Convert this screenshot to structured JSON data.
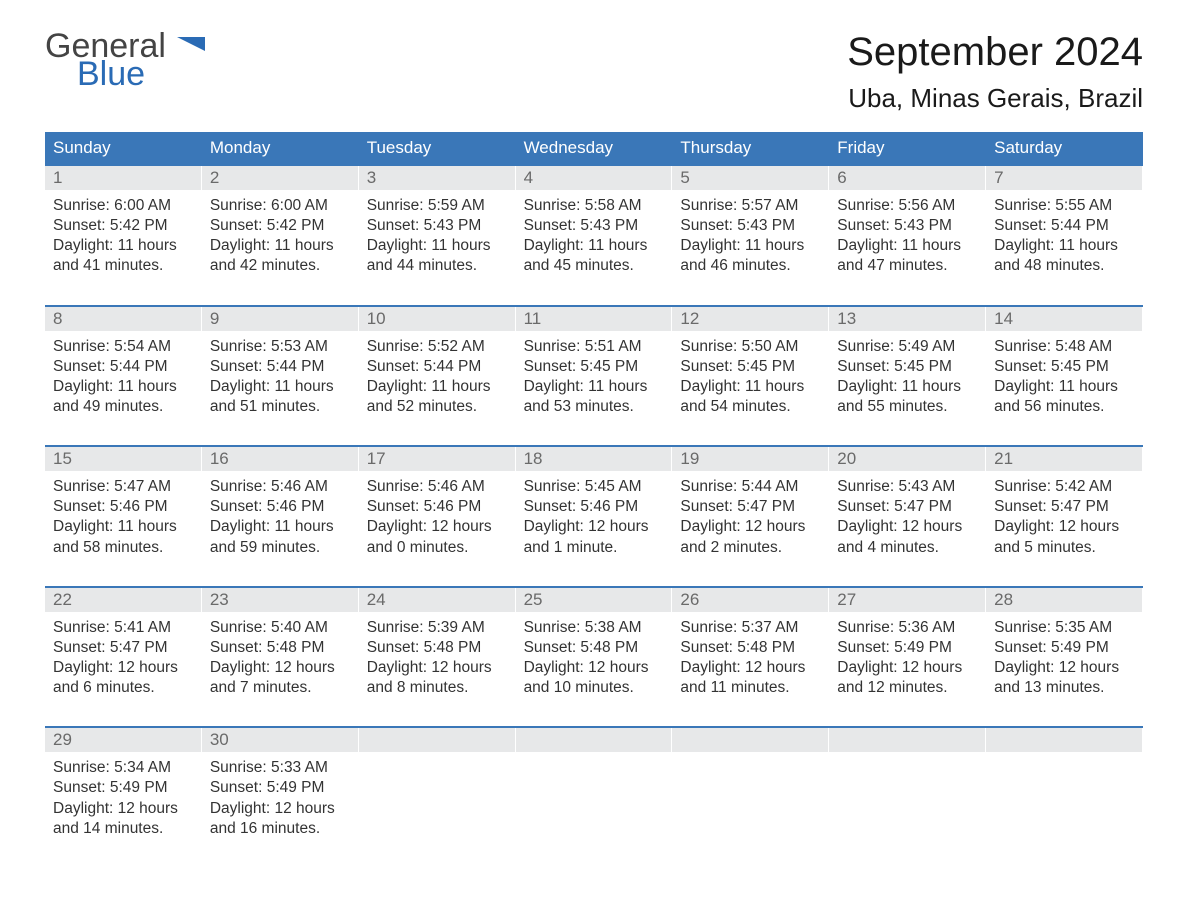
{
  "logo": {
    "line1": "General",
    "line2": "Blue",
    "color_general": "#444444",
    "color_blue": "#2a6bb5",
    "flag_color": "#2a6bb5"
  },
  "header": {
    "month": "September 2024",
    "location": "Uba, Minas Gerais, Brazil"
  },
  "styling": {
    "header_bg": "#3a77b8",
    "header_text": "#ffffff",
    "daynum_bg": "#e7e8e9",
    "daynum_text": "#6a6a6a",
    "body_text": "#333333",
    "row_border": "#3a77b8",
    "page_bg": "#ffffff",
    "font_family": "Arial",
    "title_fontsize": 40,
    "location_fontsize": 26,
    "weekday_fontsize": 17,
    "content_fontsize": 15.5
  },
  "weekdays": [
    "Sunday",
    "Monday",
    "Tuesday",
    "Wednesday",
    "Thursday",
    "Friday",
    "Saturday"
  ],
  "weeks": [
    [
      {
        "num": "1",
        "sunrise": "Sunrise: 6:00 AM",
        "sunset": "Sunset: 5:42 PM",
        "daylight1": "Daylight: 11 hours",
        "daylight2": "and 41 minutes."
      },
      {
        "num": "2",
        "sunrise": "Sunrise: 6:00 AM",
        "sunset": "Sunset: 5:42 PM",
        "daylight1": "Daylight: 11 hours",
        "daylight2": "and 42 minutes."
      },
      {
        "num": "3",
        "sunrise": "Sunrise: 5:59 AM",
        "sunset": "Sunset: 5:43 PM",
        "daylight1": "Daylight: 11 hours",
        "daylight2": "and 44 minutes."
      },
      {
        "num": "4",
        "sunrise": "Sunrise: 5:58 AM",
        "sunset": "Sunset: 5:43 PM",
        "daylight1": "Daylight: 11 hours",
        "daylight2": "and 45 minutes."
      },
      {
        "num": "5",
        "sunrise": "Sunrise: 5:57 AM",
        "sunset": "Sunset: 5:43 PM",
        "daylight1": "Daylight: 11 hours",
        "daylight2": "and 46 minutes."
      },
      {
        "num": "6",
        "sunrise": "Sunrise: 5:56 AM",
        "sunset": "Sunset: 5:43 PM",
        "daylight1": "Daylight: 11 hours",
        "daylight2": "and 47 minutes."
      },
      {
        "num": "7",
        "sunrise": "Sunrise: 5:55 AM",
        "sunset": "Sunset: 5:44 PM",
        "daylight1": "Daylight: 11 hours",
        "daylight2": "and 48 minutes."
      }
    ],
    [
      {
        "num": "8",
        "sunrise": "Sunrise: 5:54 AM",
        "sunset": "Sunset: 5:44 PM",
        "daylight1": "Daylight: 11 hours",
        "daylight2": "and 49 minutes."
      },
      {
        "num": "9",
        "sunrise": "Sunrise: 5:53 AM",
        "sunset": "Sunset: 5:44 PM",
        "daylight1": "Daylight: 11 hours",
        "daylight2": "and 51 minutes."
      },
      {
        "num": "10",
        "sunrise": "Sunrise: 5:52 AM",
        "sunset": "Sunset: 5:44 PM",
        "daylight1": "Daylight: 11 hours",
        "daylight2": "and 52 minutes."
      },
      {
        "num": "11",
        "sunrise": "Sunrise: 5:51 AM",
        "sunset": "Sunset: 5:45 PM",
        "daylight1": "Daylight: 11 hours",
        "daylight2": "and 53 minutes."
      },
      {
        "num": "12",
        "sunrise": "Sunrise: 5:50 AM",
        "sunset": "Sunset: 5:45 PM",
        "daylight1": "Daylight: 11 hours",
        "daylight2": "and 54 minutes."
      },
      {
        "num": "13",
        "sunrise": "Sunrise: 5:49 AM",
        "sunset": "Sunset: 5:45 PM",
        "daylight1": "Daylight: 11 hours",
        "daylight2": "and 55 minutes."
      },
      {
        "num": "14",
        "sunrise": "Sunrise: 5:48 AM",
        "sunset": "Sunset: 5:45 PM",
        "daylight1": "Daylight: 11 hours",
        "daylight2": "and 56 minutes."
      }
    ],
    [
      {
        "num": "15",
        "sunrise": "Sunrise: 5:47 AM",
        "sunset": "Sunset: 5:46 PM",
        "daylight1": "Daylight: 11 hours",
        "daylight2": "and 58 minutes."
      },
      {
        "num": "16",
        "sunrise": "Sunrise: 5:46 AM",
        "sunset": "Sunset: 5:46 PM",
        "daylight1": "Daylight: 11 hours",
        "daylight2": "and 59 minutes."
      },
      {
        "num": "17",
        "sunrise": "Sunrise: 5:46 AM",
        "sunset": "Sunset: 5:46 PM",
        "daylight1": "Daylight: 12 hours",
        "daylight2": "and 0 minutes."
      },
      {
        "num": "18",
        "sunrise": "Sunrise: 5:45 AM",
        "sunset": "Sunset: 5:46 PM",
        "daylight1": "Daylight: 12 hours",
        "daylight2": "and 1 minute."
      },
      {
        "num": "19",
        "sunrise": "Sunrise: 5:44 AM",
        "sunset": "Sunset: 5:47 PM",
        "daylight1": "Daylight: 12 hours",
        "daylight2": "and 2 minutes."
      },
      {
        "num": "20",
        "sunrise": "Sunrise: 5:43 AM",
        "sunset": "Sunset: 5:47 PM",
        "daylight1": "Daylight: 12 hours",
        "daylight2": "and 4 minutes."
      },
      {
        "num": "21",
        "sunrise": "Sunrise: 5:42 AM",
        "sunset": "Sunset: 5:47 PM",
        "daylight1": "Daylight: 12 hours",
        "daylight2": "and 5 minutes."
      }
    ],
    [
      {
        "num": "22",
        "sunrise": "Sunrise: 5:41 AM",
        "sunset": "Sunset: 5:47 PM",
        "daylight1": "Daylight: 12 hours",
        "daylight2": "and 6 minutes."
      },
      {
        "num": "23",
        "sunrise": "Sunrise: 5:40 AM",
        "sunset": "Sunset: 5:48 PM",
        "daylight1": "Daylight: 12 hours",
        "daylight2": "and 7 minutes."
      },
      {
        "num": "24",
        "sunrise": "Sunrise: 5:39 AM",
        "sunset": "Sunset: 5:48 PM",
        "daylight1": "Daylight: 12 hours",
        "daylight2": "and 8 minutes."
      },
      {
        "num": "25",
        "sunrise": "Sunrise: 5:38 AM",
        "sunset": "Sunset: 5:48 PM",
        "daylight1": "Daylight: 12 hours",
        "daylight2": "and 10 minutes."
      },
      {
        "num": "26",
        "sunrise": "Sunrise: 5:37 AM",
        "sunset": "Sunset: 5:48 PM",
        "daylight1": "Daylight: 12 hours",
        "daylight2": "and 11 minutes."
      },
      {
        "num": "27",
        "sunrise": "Sunrise: 5:36 AM",
        "sunset": "Sunset: 5:49 PM",
        "daylight1": "Daylight: 12 hours",
        "daylight2": "and 12 minutes."
      },
      {
        "num": "28",
        "sunrise": "Sunrise: 5:35 AM",
        "sunset": "Sunset: 5:49 PM",
        "daylight1": "Daylight: 12 hours",
        "daylight2": "and 13 minutes."
      }
    ],
    [
      {
        "num": "29",
        "sunrise": "Sunrise: 5:34 AM",
        "sunset": "Sunset: 5:49 PM",
        "daylight1": "Daylight: 12 hours",
        "daylight2": "and 14 minutes."
      },
      {
        "num": "30",
        "sunrise": "Sunrise: 5:33 AM",
        "sunset": "Sunset: 5:49 PM",
        "daylight1": "Daylight: 12 hours",
        "daylight2": "and 16 minutes."
      },
      null,
      null,
      null,
      null,
      null
    ]
  ]
}
